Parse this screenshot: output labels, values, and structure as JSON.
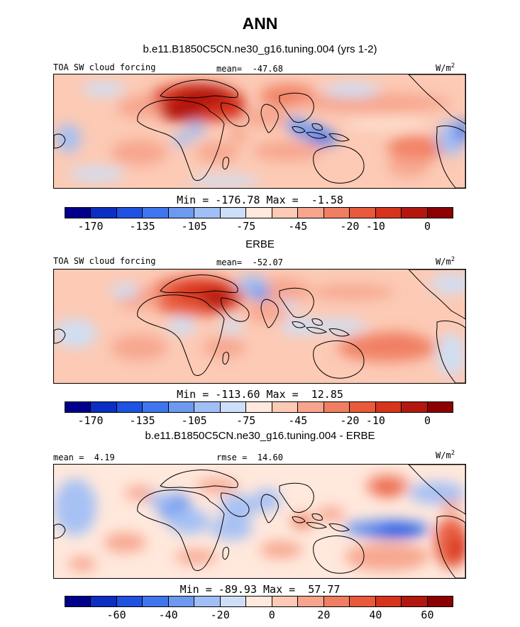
{
  "title": "ANN",
  "colors": {
    "scale": [
      "#00008b",
      "#0a2fc2",
      "#1f52e0",
      "#3f76ee",
      "#6d99f1",
      "#a1bff5",
      "#cddff8",
      "#ffe8dc",
      "#fccab5",
      "#f7a48c",
      "#f07e62",
      "#e85a3b",
      "#d7341d",
      "#b31810",
      "#8b0000"
    ]
  },
  "chart_data": [
    {
      "type": "heatmap",
      "subtitle": "b.e11.B1850C5CN.ne30_g16.tuning.004 (yrs 1-2)",
      "left_label": "TOA SW cloud forcing",
      "center_label": "mean=  -47.68",
      "units_main": "W/m",
      "units_exp": "2",
      "min_max": "Min = -176.78 Max =  -1.58",
      "colorbar_ticks": [
        "-170",
        "-135",
        "-105",
        "-75",
        "-45",
        "-20",
        "-10",
        "0"
      ],
      "mean": -47.68,
      "min": -176.78,
      "max": -1.58
    },
    {
      "type": "heatmap",
      "subtitle": "ERBE",
      "left_label": "TOA SW cloud forcing",
      "center_label": "mean=  -52.07",
      "units_main": "W/m",
      "units_exp": "2",
      "min_max": "Min = -113.60 Max =  12.85",
      "colorbar_ticks": [
        "-170",
        "-135",
        "-105",
        "-75",
        "-45",
        "-20",
        "-10",
        "0"
      ],
      "mean": -52.07,
      "min": -113.6,
      "max": 12.85
    },
    {
      "type": "heatmap",
      "subtitle": "b.e11.B1850C5CN.ne30_g16.tuning.004 - ERBE",
      "left_label": "mean =  4.19",
      "center_label": "rmse =  14.60",
      "units_main": "W/m",
      "units_exp": "2",
      "min_max": "Min = -89.93 Max =  57.77",
      "colorbar_ticks": [
        "-60",
        "-40",
        "-20",
        "0",
        "20",
        "40",
        "60"
      ],
      "mean": 4.19,
      "rmse": 14.6,
      "min": -89.93,
      "max": 57.77
    }
  ]
}
